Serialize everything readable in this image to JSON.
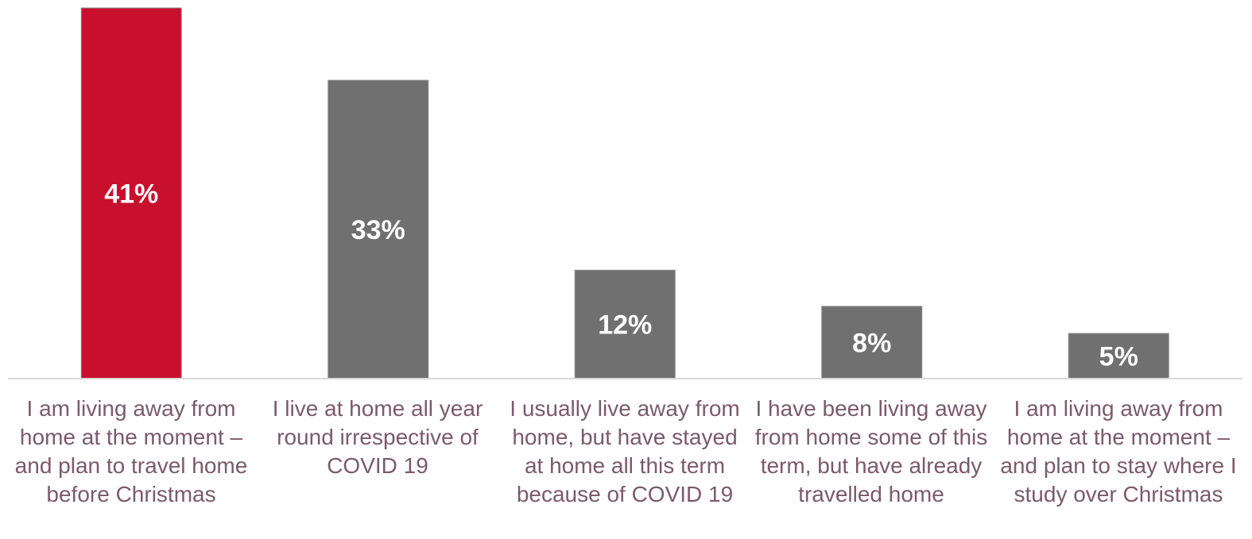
{
  "chart_data": {
    "type": "bar",
    "categories": [
      "I am living away from home at the moment – and plan to travel home before Christmas",
      "I live at home all year round irrespective of COVID 19",
      "I usually live away from home, but have stayed at home all this term because of COVID 19",
      "I have been living away from home some of this term, but have already travelled home",
      "I am living away from home at the moment – and plan to stay where I study over Christmas"
    ],
    "values": [
      41,
      33,
      12,
      8,
      5
    ],
    "value_labels": [
      "41%",
      "33%",
      "12%",
      "8%",
      "5%"
    ],
    "title": "",
    "xlabel": "",
    "ylabel": "",
    "ylim": [
      0,
      41
    ],
    "grid": false,
    "legend": "none",
    "colors": {
      "highlight": "#c8102e",
      "default": "#707070",
      "axis": "#d9d9d9",
      "label_text": "#7b5a6a"
    },
    "highlight_index": 0
  }
}
